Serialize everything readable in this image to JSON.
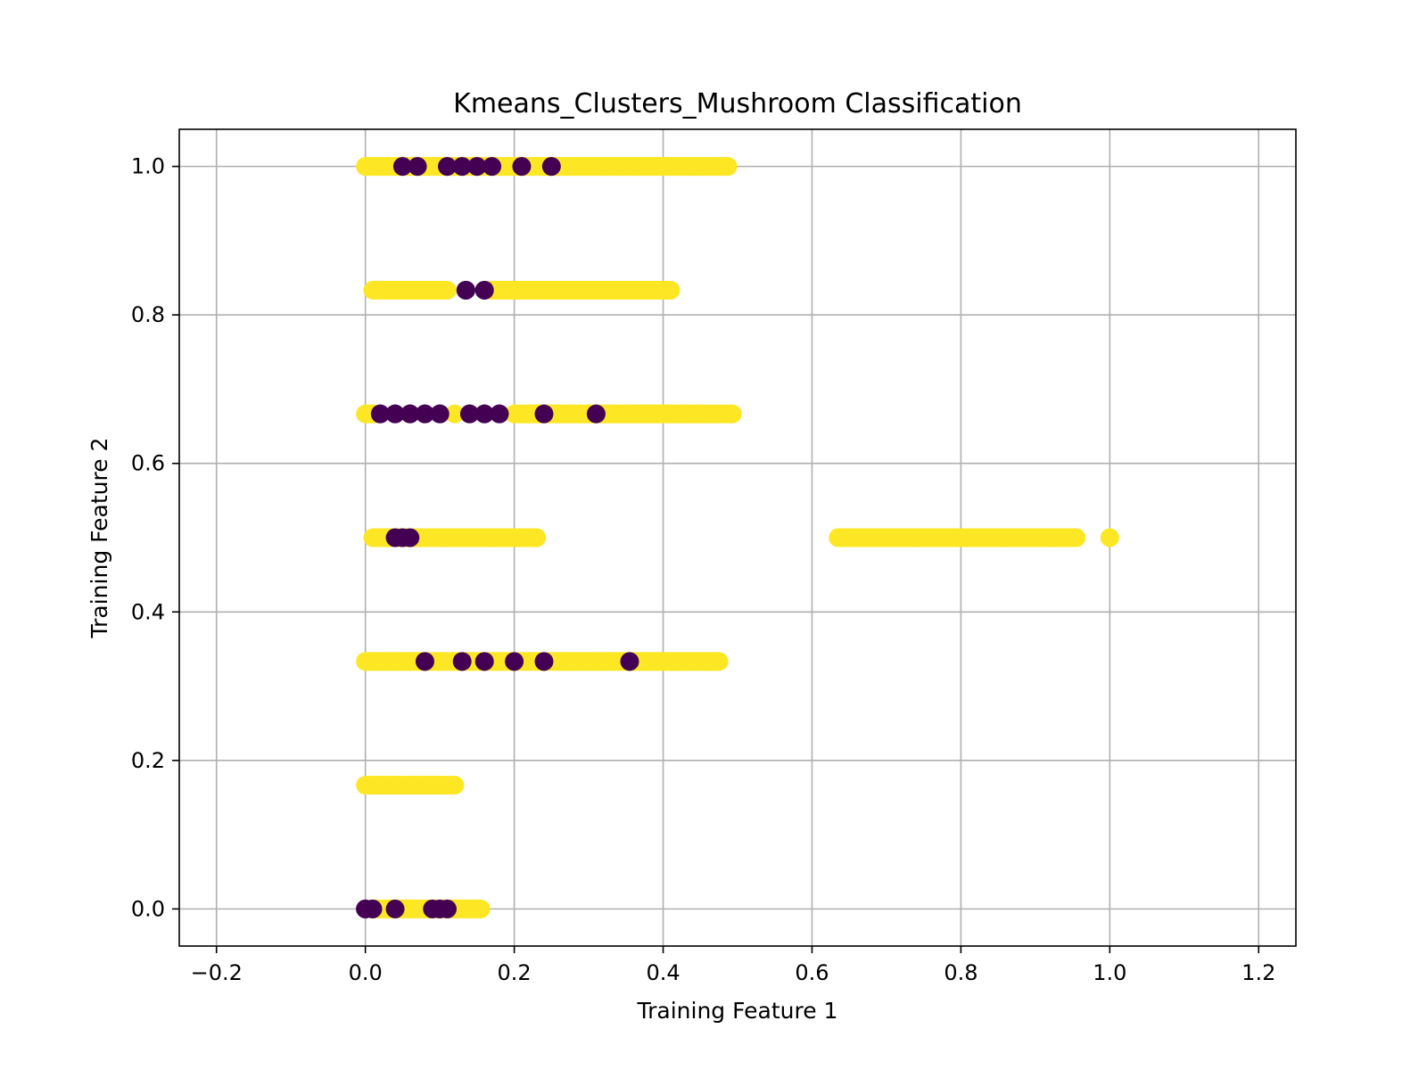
{
  "chart_data": {
    "type": "scatter",
    "title": "Kmeans_Clusters_Mushroom Classification",
    "xlabel": "Training Feature 1",
    "ylabel": "Training Feature 2",
    "xlim": [
      -0.25,
      1.25
    ],
    "ylim": [
      -0.05,
      1.05
    ],
    "xticks": [
      -0.2,
      0.0,
      0.2,
      0.4,
      0.6,
      0.8,
      1.0,
      1.2
    ],
    "yticks": [
      0.0,
      0.2,
      0.4,
      0.6,
      0.8,
      1.0
    ],
    "xtick_labels": [
      "−0.2",
      "0.0",
      "0.2",
      "0.4",
      "0.6",
      "0.8",
      "1.0",
      "1.2"
    ],
    "ytick_labels": [
      "0.0",
      "0.2",
      "0.4",
      "0.6",
      "0.8",
      "1.0"
    ],
    "grid": true,
    "colors": {
      "cluster_0": "#440154",
      "cluster_1": "#fde725"
    },
    "series": [
      {
        "cluster": 1,
        "color": "#fde725",
        "points": [
          [
            0.0,
            1.0
          ],
          [
            0.02,
            1.0
          ],
          [
            0.04,
            1.0
          ],
          [
            0.06,
            1.0
          ],
          [
            0.08,
            1.0
          ],
          [
            0.1,
            1.0
          ],
          [
            0.14,
            1.0
          ],
          [
            0.18,
            1.0
          ],
          [
            0.22,
            1.0
          ],
          [
            0.26,
            1.0
          ],
          [
            0.28,
            1.0
          ],
          [
            0.3,
            1.0
          ],
          [
            0.32,
            1.0
          ],
          [
            0.34,
            1.0
          ],
          [
            0.36,
            1.0
          ],
          [
            0.38,
            1.0
          ],
          [
            0.4,
            1.0
          ],
          [
            0.42,
            1.0
          ],
          [
            0.44,
            1.0
          ],
          [
            0.45,
            1.0
          ],
          [
            0.487,
            1.0
          ],
          [
            0.01,
            0.8333
          ],
          [
            0.03,
            0.8333
          ],
          [
            0.05,
            0.8333
          ],
          [
            0.07,
            0.8333
          ],
          [
            0.09,
            0.8333
          ],
          [
            0.11,
            0.8333
          ],
          [
            0.17,
            0.8333
          ],
          [
            0.19,
            0.8333
          ],
          [
            0.21,
            0.8333
          ],
          [
            0.23,
            0.8333
          ],
          [
            0.25,
            0.8333
          ],
          [
            0.27,
            0.8333
          ],
          [
            0.29,
            0.8333
          ],
          [
            0.31,
            0.8333
          ],
          [
            0.33,
            0.8333
          ],
          [
            0.35,
            0.8333
          ],
          [
            0.37,
            0.8333
          ],
          [
            0.39,
            0.8333
          ],
          [
            0.41,
            0.8333
          ],
          [
            0.0,
            0.6667
          ],
          [
            0.01,
            0.6667
          ],
          [
            0.12,
            0.6667
          ],
          [
            0.2,
            0.6667
          ],
          [
            0.22,
            0.6667
          ],
          [
            0.26,
            0.6667
          ],
          [
            0.28,
            0.6667
          ],
          [
            0.3,
            0.6667
          ],
          [
            0.33,
            0.6667
          ],
          [
            0.35,
            0.6667
          ],
          [
            0.37,
            0.6667
          ],
          [
            0.39,
            0.6667
          ],
          [
            0.41,
            0.6667
          ],
          [
            0.43,
            0.6667
          ],
          [
            0.45,
            0.6667
          ],
          [
            0.493,
            0.6667
          ],
          [
            0.01,
            0.5
          ],
          [
            0.03,
            0.5
          ],
          [
            0.07,
            0.5
          ],
          [
            0.09,
            0.5
          ],
          [
            0.11,
            0.5
          ],
          [
            0.13,
            0.5
          ],
          [
            0.15,
            0.5
          ],
          [
            0.17,
            0.5
          ],
          [
            0.19,
            0.5
          ],
          [
            0.21,
            0.5
          ],
          [
            0.23,
            0.5
          ],
          [
            0.635,
            0.5
          ],
          [
            0.643,
            0.5
          ],
          [
            0.672,
            0.5
          ],
          [
            0.7,
            0.5
          ],
          [
            0.72,
            0.5
          ],
          [
            0.74,
            0.5
          ],
          [
            0.76,
            0.5
          ],
          [
            0.78,
            0.5
          ],
          [
            0.8,
            0.5
          ],
          [
            0.82,
            0.5
          ],
          [
            0.84,
            0.5
          ],
          [
            0.86,
            0.5
          ],
          [
            0.88,
            0.5
          ],
          [
            0.9,
            0.5
          ],
          [
            0.92,
            0.5
          ],
          [
            0.94,
            0.5
          ],
          [
            0.955,
            0.5
          ],
          [
            1.0,
            0.5
          ],
          [
            0.0,
            0.3333
          ],
          [
            0.02,
            0.3333
          ],
          [
            0.04,
            0.3333
          ],
          [
            0.06,
            0.3333
          ],
          [
            0.1,
            0.3333
          ],
          [
            0.14,
            0.3333
          ],
          [
            0.18,
            0.3333
          ],
          [
            0.22,
            0.3333
          ],
          [
            0.26,
            0.3333
          ],
          [
            0.28,
            0.3333
          ],
          [
            0.3,
            0.3333
          ],
          [
            0.32,
            0.3333
          ],
          [
            0.34,
            0.3333
          ],
          [
            0.37,
            0.3333
          ],
          [
            0.39,
            0.3333
          ],
          [
            0.41,
            0.3333
          ],
          [
            0.42,
            0.3333
          ],
          [
            0.44,
            0.3333
          ],
          [
            0.46,
            0.3333
          ],
          [
            0.475,
            0.3333
          ],
          [
            0.0,
            0.1667
          ],
          [
            0.02,
            0.1667
          ],
          [
            0.04,
            0.1667
          ],
          [
            0.06,
            0.1667
          ],
          [
            0.08,
            0.1667
          ],
          [
            0.1,
            0.1667
          ],
          [
            0.12,
            0.1667
          ],
          [
            0.01,
            0.0
          ],
          [
            0.03,
            0.0
          ],
          [
            0.06,
            0.0
          ],
          [
            0.08,
            0.0
          ],
          [
            0.12,
            0.0
          ],
          [
            0.14,
            0.0
          ],
          [
            0.155,
            0.0
          ]
        ]
      },
      {
        "cluster": 0,
        "color": "#440154",
        "points": [
          [
            0.05,
            1.0
          ],
          [
            0.07,
            1.0
          ],
          [
            0.11,
            1.0
          ],
          [
            0.13,
            1.0
          ],
          [
            0.15,
            1.0
          ],
          [
            0.17,
            1.0
          ],
          [
            0.21,
            1.0
          ],
          [
            0.25,
            1.0
          ],
          [
            0.135,
            0.8333
          ],
          [
            0.16,
            0.8333
          ],
          [
            0.02,
            0.6667
          ],
          [
            0.04,
            0.6667
          ],
          [
            0.06,
            0.6667
          ],
          [
            0.08,
            0.6667
          ],
          [
            0.1,
            0.6667
          ],
          [
            0.14,
            0.6667
          ],
          [
            0.16,
            0.6667
          ],
          [
            0.18,
            0.6667
          ],
          [
            0.24,
            0.6667
          ],
          [
            0.31,
            0.6667
          ],
          [
            0.04,
            0.5
          ],
          [
            0.05,
            0.5
          ],
          [
            0.06,
            0.5
          ],
          [
            0.08,
            0.3333
          ],
          [
            0.13,
            0.3333
          ],
          [
            0.16,
            0.3333
          ],
          [
            0.2,
            0.3333
          ],
          [
            0.24,
            0.3333
          ],
          [
            0.355,
            0.3333
          ],
          [
            0.0,
            0.0
          ],
          [
            0.01,
            0.0
          ],
          [
            0.04,
            0.0
          ],
          [
            0.09,
            0.0
          ],
          [
            0.1,
            0.0
          ],
          [
            0.11,
            0.0
          ]
        ]
      }
    ]
  }
}
